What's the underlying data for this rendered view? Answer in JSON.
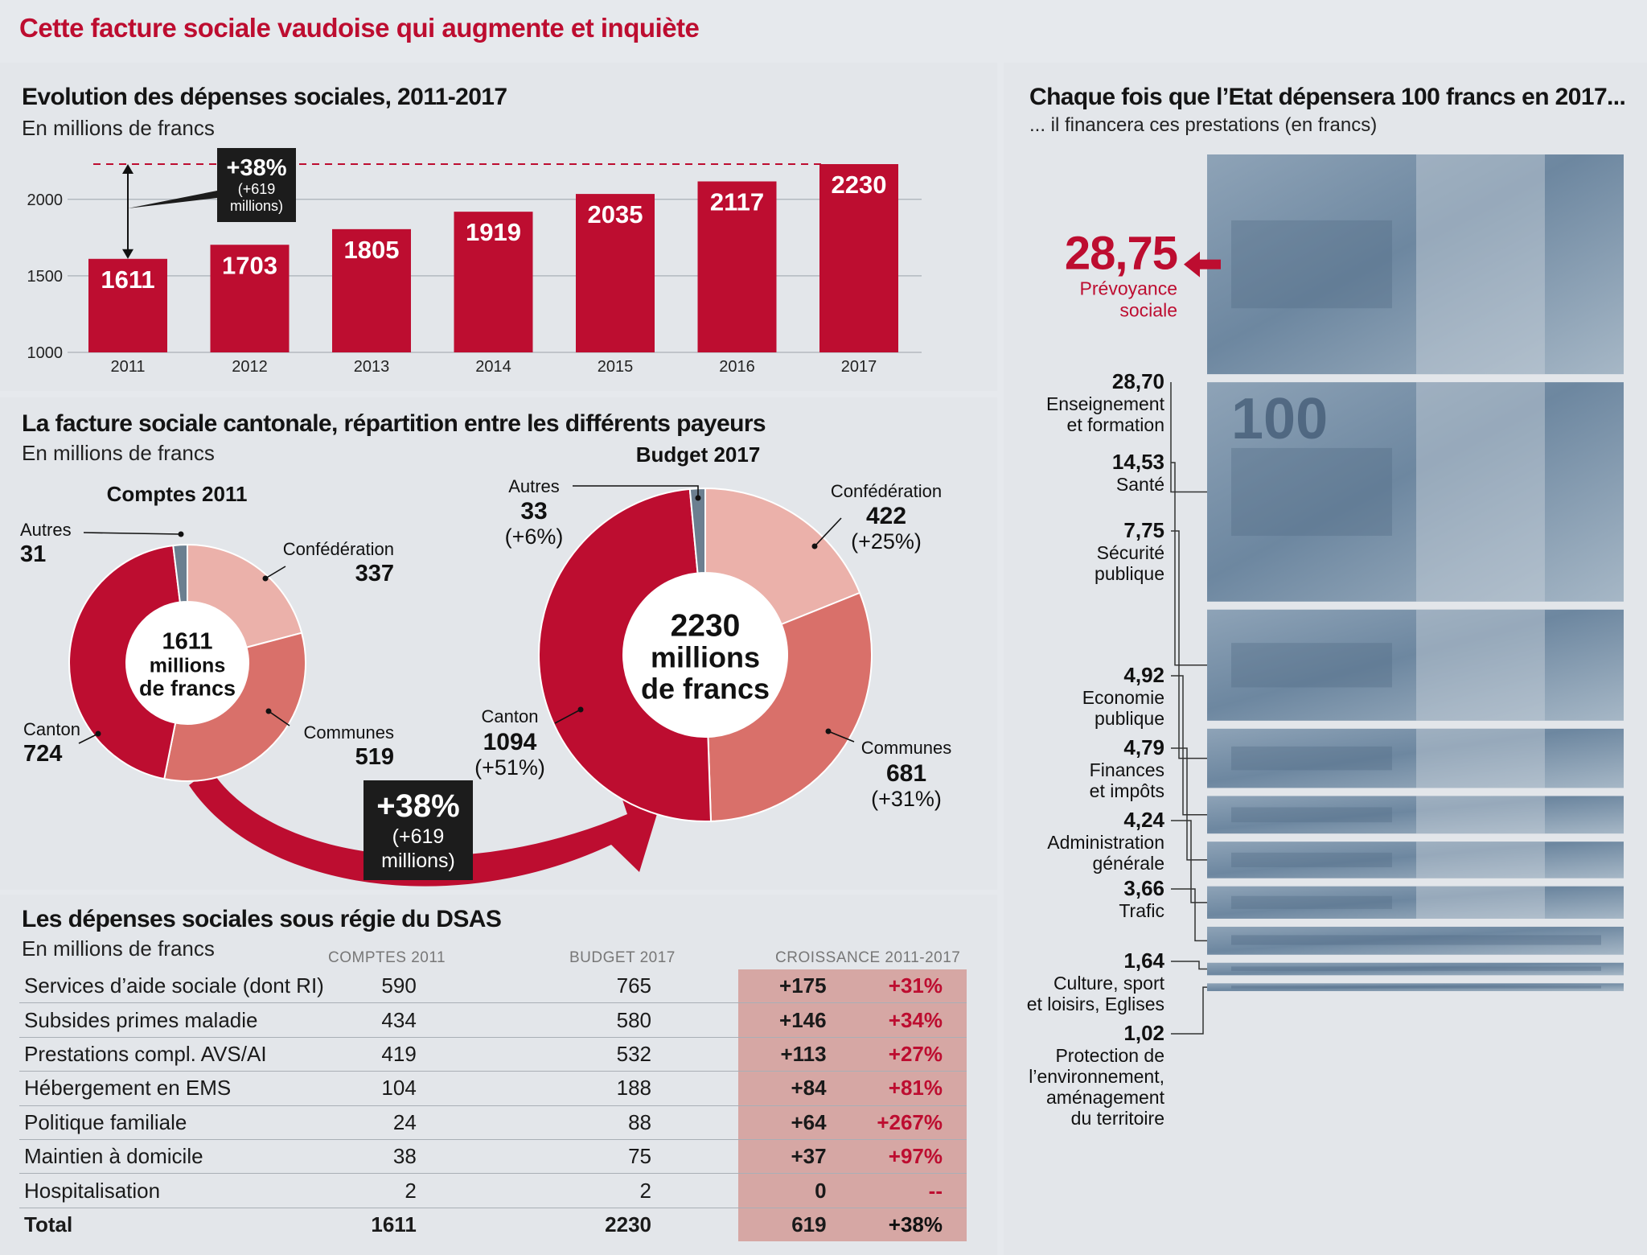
{
  "page_title": "Cette facture sociale vaudoise qui augmente et inquiète",
  "chart_data": [
    {
      "type": "bar",
      "title": "Evolution des dépenses sociales, 2011-2017",
      "subtitle": "En millions de francs",
      "categories": [
        "2011",
        "2012",
        "2013",
        "2014",
        "2015",
        "2016",
        "2017"
      ],
      "values": [
        1611,
        1703,
        1805,
        1919,
        2035,
        2117,
        2230
      ],
      "yticks": [
        1000,
        1500,
        2000
      ],
      "ylim": [
        1000,
        2230
      ],
      "annotation": {
        "pct": "+38%",
        "line1": "(+619",
        "line2": "millions)"
      },
      "colors": {
        "bar": "#bd0d30",
        "dashed": "#bd0d30"
      }
    },
    {
      "type": "pie",
      "title": "La facture sociale cantonale, répartition entre les différents payeurs",
      "subtitle": "En millions de francs",
      "donuts": [
        {
          "title": "Comptes 2011",
          "center": [
            "1611",
            "millions",
            "de francs"
          ],
          "slices": [
            {
              "name": "Confédération",
              "value": 337,
              "change": "",
              "color": "#ebb1aa"
            },
            {
              "name": "Communes",
              "value": 519,
              "change": "",
              "color": "#d9706a"
            },
            {
              "name": "Canton",
              "value": 724,
              "change": "",
              "color": "#bd0d30"
            },
            {
              "name": "Autres",
              "value": 31,
              "change": "",
              "color": "#6b7f90"
            }
          ]
        },
        {
          "title": "Budget 2017",
          "center": [
            "2230",
            "millions",
            "de francs"
          ],
          "slices": [
            {
              "name": "Confédération",
              "value": 422,
              "change": "(+25%)",
              "color": "#ebb1aa"
            },
            {
              "name": "Communes",
              "value": 681,
              "change": "(+31%)",
              "color": "#d9706a"
            },
            {
              "name": "Canton",
              "value": 1094,
              "change": "(+51%)",
              "color": "#bd0d30"
            },
            {
              "name": "Autres",
              "value": 33,
              "change": "(+6%)",
              "color": "#6b7f90"
            }
          ]
        }
      ],
      "arrow": {
        "pct": "+38%",
        "line1": "(+619",
        "line2": "millions)"
      }
    },
    {
      "type": "table",
      "title": "Les dépenses sociales sous régie du DSAS",
      "subtitle": "En millions de francs",
      "columns": [
        "COMPTES 2011",
        "BUDGET 2017",
        "CROISSANCE 2011-2017"
      ],
      "rows": [
        {
          "label": "Services d’aide sociale (dont RI)",
          "c2011": "590",
          "b2017": "765",
          "abs": "+175",
          "pct": "+31%"
        },
        {
          "label": "Subsides primes maladie",
          "c2011": "434",
          "b2017": "580",
          "abs": "+146",
          "pct": "+34%"
        },
        {
          "label": "Prestations compl. AVS/AI",
          "c2011": "419",
          "b2017": "532",
          "abs": "+113",
          "pct": "+27%"
        },
        {
          "label": "Hébergement en EMS",
          "c2011": "104",
          "b2017": "188",
          "abs": "+84",
          "pct": "+81%"
        },
        {
          "label": "Politique familiale",
          "c2011": "24",
          "b2017": "88",
          "abs": "+64",
          "pct": "+267%"
        },
        {
          "label": "Maintien à domicile",
          "c2011": "38",
          "b2017": "75",
          "abs": "+37",
          "pct": "+97%"
        },
        {
          "label": "Hospitalisation",
          "c2011": "2",
          "b2017": "2",
          "abs": "0",
          "pct": "--"
        }
      ],
      "total": {
        "label": "Total",
        "c2011": "1611",
        "b2017": "2230",
        "abs": "619",
        "pct": "+38%"
      }
    },
    {
      "type": "bar",
      "title": "Chaque fois que l’Etat dépensera 100 francs en 2017...",
      "subtitle": "... il financera ces prestations (en francs)",
      "categories": [
        "Prévoyance sociale",
        "Enseignement et formation",
        "Santé",
        "Sécurité publique",
        "Economie publique",
        "Finances et impôts",
        "Administration générale",
        "Trafic",
        "Culture, sport et loisirs, Eglises",
        "Protection de l’environnement, aménagement du territoire"
      ],
      "values": [
        28.75,
        28.7,
        14.53,
        7.75,
        4.92,
        4.79,
        4.24,
        3.66,
        1.64,
        1.02
      ],
      "value_labels": [
        "28,75",
        "28,70",
        "14,53",
        "7,75",
        "4,92",
        "4,79",
        "4,24",
        "3,66",
        "1,64",
        "1,02"
      ],
      "label_lines": [
        [
          "Prévoyance",
          "sociale"
        ],
        [
          "Enseignement",
          "et formation"
        ],
        [
          "Santé"
        ],
        [
          "Sécurité",
          "publique"
        ],
        [
          "Economie",
          "publique"
        ],
        [
          "Finances",
          "et impôts"
        ],
        [
          "Administration",
          "générale"
        ],
        [
          "Trafic"
        ],
        [
          "Culture, sport",
          "et loisirs, Eglises"
        ],
        [
          "Protection de",
          "l’environnement,",
          "aménagement",
          "du territoire"
        ]
      ],
      "banknote_text": "100"
    }
  ]
}
